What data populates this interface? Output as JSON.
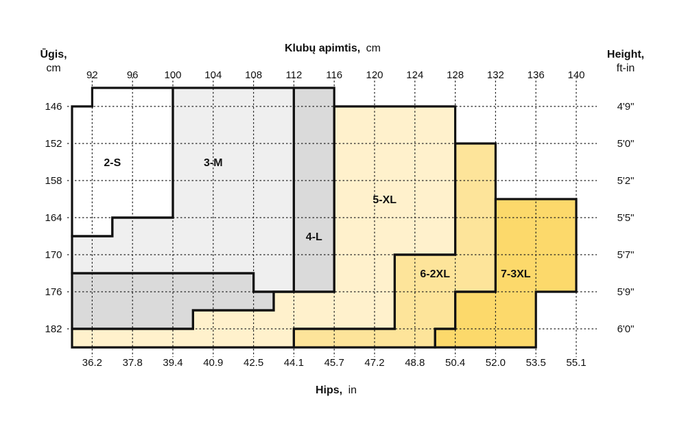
{
  "colors": {
    "2-S": "#ffffff",
    "3-M": "#efefef",
    "4-L": "#dadada",
    "5-XL": "#fff1cc",
    "6-2XL": "#fde49a",
    "7-3XL": "#fcd96b",
    "grid": "#222222",
    "outline": "#111111"
  },
  "chart_data": {
    "type": "heatmap",
    "top_axis": {
      "title_bold": "Klubų apimtis,",
      "title_unit": "cm",
      "ticks": [
        "92",
        "96",
        "100",
        "104",
        "108",
        "112",
        "116",
        "120",
        "124",
        "128",
        "132",
        "136",
        "140"
      ]
    },
    "bottom_axis": {
      "title_bold": "Hips,",
      "title_unit": "in",
      "ticks": [
        "36.2",
        "37.8",
        "39.4",
        "40.9",
        "42.5",
        "44.1",
        "45.7",
        "47.2",
        "48.8",
        "50.4",
        "52.0",
        "53.5",
        "55.1"
      ]
    },
    "left_axis": {
      "title_bold": "Ūgis,",
      "title_unit": "cm",
      "ticks": [
        "146",
        "152",
        "158",
        "164",
        "170",
        "176",
        "182"
      ]
    },
    "right_axis": {
      "title_bold": "Height,",
      "title_unit": "ft-in",
      "ticks": [
        "4'9\"",
        "5'0\"",
        "5'2\"",
        "5'5\"",
        "5'7\"",
        "5'9\"",
        "6'0\""
      ]
    },
    "grid": true,
    "zones": [
      {
        "label": "2-S",
        "color_key": "2-S",
        "outline": [
          [
            90,
            146
          ],
          [
            92,
            146
          ],
          [
            92,
            143
          ],
          [
            100,
            143
          ],
          [
            100,
            164
          ],
          [
            94,
            164
          ],
          [
            94,
            167
          ],
          [
            90,
            167
          ]
        ]
      },
      {
        "label": "3-M",
        "color_key": "3-M",
        "outline": [
          [
            100,
            143
          ],
          [
            112,
            143
          ],
          [
            112,
            176
          ],
          [
            108,
            176
          ],
          [
            108,
            173
          ],
          [
            90,
            173
          ],
          [
            90,
            167
          ],
          [
            94,
            167
          ],
          [
            94,
            164
          ],
          [
            100,
            164
          ]
        ]
      },
      {
        "label": "4-L",
        "color_key": "4-L",
        "outline": [
          [
            112,
            143
          ],
          [
            116,
            143
          ],
          [
            116,
            176
          ],
          [
            110,
            176
          ],
          [
            110,
            179
          ],
          [
            102,
            179
          ],
          [
            102,
            182
          ],
          [
            90,
            182
          ],
          [
            90,
            173
          ],
          [
            108,
            173
          ],
          [
            108,
            176
          ],
          [
            112,
            176
          ]
        ]
      },
      {
        "label": "5-XL",
        "color_key": "5-XL",
        "outline": [
          [
            116,
            146
          ],
          [
            128,
            146
          ],
          [
            128,
            170
          ],
          [
            122,
            170
          ],
          [
            122,
            182
          ],
          [
            112,
            182
          ],
          [
            112,
            185
          ],
          [
            90,
            185
          ],
          [
            90,
            182
          ],
          [
            102,
            182
          ],
          [
            102,
            179
          ],
          [
            110,
            179
          ],
          [
            110,
            176
          ],
          [
            116,
            176
          ]
        ]
      },
      {
        "label": "6-2XL",
        "color_key": "6-2XL",
        "outline": [
          [
            128,
            152
          ],
          [
            132,
            152
          ],
          [
            132,
            176
          ],
          [
            128,
            176
          ],
          [
            128,
            182
          ],
          [
            126,
            182
          ],
          [
            126,
            185
          ],
          [
            112,
            185
          ],
          [
            112,
            182
          ],
          [
            122,
            182
          ],
          [
            122,
            170
          ],
          [
            128,
            170
          ]
        ]
      },
      {
        "label": "7-3XL",
        "color_key": "7-3XL",
        "outline": [
          [
            132,
            161
          ],
          [
            140,
            161
          ],
          [
            140,
            176
          ],
          [
            136,
            176
          ],
          [
            136,
            185
          ],
          [
            126,
            185
          ],
          [
            126,
            182
          ],
          [
            128,
            182
          ],
          [
            128,
            176
          ],
          [
            132,
            176
          ]
        ]
      }
    ],
    "label_anchor": [
      {
        "label": "2-S",
        "x": 94,
        "y": 155
      },
      {
        "label": "3-M",
        "x": 104,
        "y": 155
      },
      {
        "label": "4-L",
        "x": 114,
        "y": 167
      },
      {
        "label": "5-XL",
        "x": 121,
        "y": 161
      },
      {
        "label": "6-2XL",
        "x": 126,
        "y": 173
      },
      {
        "label": "7-3XL",
        "x": 134,
        "y": 173
      }
    ]
  }
}
